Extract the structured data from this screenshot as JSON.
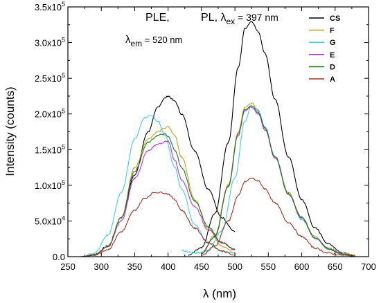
{
  "chart_data": {
    "type": "line",
    "xlabel": "λ (nm)",
    "ylabel": "Intensity (counts)",
    "xlim": [
      250,
      700
    ],
    "ylim": [
      0,
      350000
    ],
    "x_ticks": [
      250,
      300,
      350,
      400,
      450,
      500,
      550,
      600,
      650,
      700
    ],
    "y_ticks": [
      {
        "value": 0,
        "mant": "0.0",
        "exp": ""
      },
      {
        "value": 50000,
        "mant": "5.0x10",
        "exp": "4"
      },
      {
        "value": 100000,
        "mant": "1.0x10",
        "exp": "5"
      },
      {
        "value": 150000,
        "mant": "1.5x10",
        "exp": "5"
      },
      {
        "value": 200000,
        "mant": "2.0x10",
        "exp": "5"
      },
      {
        "value": 250000,
        "mant": "2.5x10",
        "exp": "5"
      },
      {
        "value": 300000,
        "mant": "3.0x10",
        "exp": "5"
      },
      {
        "value": 350000,
        "mant": "3.5x10",
        "exp": "5"
      }
    ],
    "annotations": {
      "ple": "PLE,",
      "pl_prefix": "PL, λ",
      "pl_sub": "ex",
      "pl_suffix": " = 397 nm",
      "em_prefix": "λ",
      "em_sub": "em",
      "em_suffix": " = 520 nm"
    },
    "legend_position": "top-right",
    "series": [
      {
        "name": "CS",
        "color": "#000000",
        "ple": {
          "x": [
            270,
            290,
            310,
            330,
            350,
            370,
            385,
            395,
            400,
            410,
            420,
            440,
            460,
            480,
            500
          ],
          "y": [
            0,
            2000,
            15000,
            55000,
            115000,
            175000,
            210000,
            222000,
            225000,
            218000,
            200000,
            148000,
            95000,
            55000,
            35000
          ]
        },
        "pl": {
          "x": [
            430,
            450,
            470,
            490,
            505,
            515,
            525,
            535,
            545,
            560,
            580,
            600,
            620,
            640,
            660,
            680
          ],
          "y": [
            2000,
            12000,
            60000,
            160000,
            265000,
            320000,
            330000,
            315000,
            285000,
            220000,
            140000,
            80000,
            40000,
            18000,
            6000,
            2000
          ]
        }
      },
      {
        "name": "F",
        "color": "#c8a020",
        "ple": {
          "x": [
            270,
            290,
            310,
            330,
            350,
            370,
            385,
            395,
            400,
            410,
            420,
            440,
            460,
            480,
            500
          ],
          "y": [
            0,
            3000,
            15000,
            55000,
            125000,
            165000,
            175000,
            180000,
            182000,
            170000,
            140000,
            80000,
            40000,
            15000,
            5000
          ]
        },
        "pl": {
          "x": [
            450,
            470,
            490,
            505,
            515,
            525,
            535,
            545,
            560,
            580,
            600,
            620,
            640,
            660,
            680
          ],
          "y": [
            5000,
            30000,
            100000,
            175000,
            210000,
            215000,
            205000,
            180000,
            140000,
            90000,
            55000,
            28000,
            12000,
            5000,
            2000
          ]
        }
      },
      {
        "name": "G",
        "color": "#40d0e8",
        "ple": {
          "x": [
            270,
            290,
            310,
            330,
            350,
            365,
            375,
            385,
            395,
            410,
            420,
            440,
            460,
            480,
            500
          ],
          "y": [
            0,
            5000,
            30000,
            90000,
            165000,
            195000,
            198000,
            190000,
            170000,
            125000,
            95000,
            45000,
            18000,
            8000,
            5000
          ]
        },
        "pl": {
          "x": [
            420,
            440,
            460,
            480,
            500,
            515,
            525,
            535,
            545,
            560,
            580,
            600,
            620,
            640,
            660,
            680
          ],
          "y": [
            8000,
            5000,
            8000,
            35000,
            110000,
            190000,
            212000,
            205000,
            182000,
            140000,
            88000,
            52000,
            26000,
            11000,
            4000,
            1000
          ]
        }
      },
      {
        "name": "E",
        "color": "#c030e0",
        "ple": {
          "x": [
            270,
            290,
            310,
            330,
            350,
            370,
            385,
            400,
            410,
            420,
            440,
            460,
            480,
            500
          ],
          "y": [
            0,
            3000,
            14000,
            50000,
            110000,
            148000,
            158000,
            162000,
            135000,
            108000,
            70000,
            38000,
            20000,
            10000
          ]
        },
        "pl": {
          "x": [
            450,
            470,
            490,
            505,
            515,
            525,
            535,
            545,
            560,
            580,
            600,
            620,
            640,
            660,
            680
          ],
          "y": [
            5000,
            28000,
            98000,
            170000,
            205000,
            210000,
            200000,
            178000,
            138000,
            88000,
            55000,
            26000,
            11000,
            4000,
            1000
          ]
        }
      },
      {
        "name": "D",
        "color": "#207820",
        "ple": {
          "x": [
            270,
            290,
            310,
            330,
            350,
            370,
            385,
            395,
            400,
            410,
            420,
            440,
            460,
            480,
            500
          ],
          "y": [
            0,
            3000,
            14000,
            55000,
            120000,
            160000,
            170000,
            172000,
            168000,
            150000,
            125000,
            78000,
            42000,
            20000,
            10000
          ]
        },
        "pl": {
          "x": [
            450,
            470,
            490,
            505,
            515,
            525,
            535,
            545,
            560,
            580,
            600,
            620,
            640,
            660,
            680
          ],
          "y": [
            5000,
            28000,
            98000,
            172000,
            206000,
            212000,
            202000,
            180000,
            140000,
            88000,
            54000,
            26000,
            11000,
            4000,
            1000
          ]
        }
      },
      {
        "name": "A",
        "color": "#a03020",
        "ple": {
          "x": [
            270,
            290,
            310,
            330,
            350,
            365,
            380,
            390,
            400,
            410,
            420,
            440,
            460,
            480,
            500
          ],
          "y": [
            0,
            2000,
            10000,
            35000,
            65000,
            82000,
            90000,
            90000,
            88000,
            80000,
            65000,
            40000,
            20000,
            8000,
            2000
          ]
        },
        "pl": {
          "x": [
            450,
            470,
            490,
            505,
            515,
            525,
            535,
            545,
            560,
            580,
            600,
            620,
            640,
            660,
            680
          ],
          "y": [
            2000,
            15000,
            50000,
            85000,
            105000,
            110000,
            106000,
            95000,
            75000,
            48000,
            28000,
            12000,
            5000,
            2000,
            1000
          ]
        }
      }
    ]
  }
}
